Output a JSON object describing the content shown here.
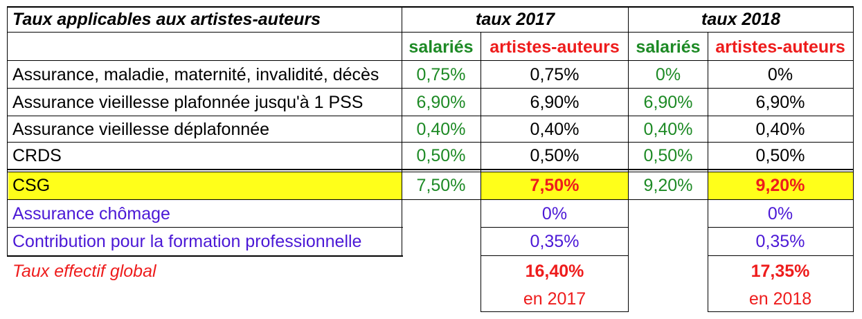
{
  "header": {
    "title": "Taux applicables aux artistes-auteurs",
    "year_2017": "taux  2017",
    "year_2018": "taux  2018"
  },
  "subheader": {
    "salaries_2017": "salariés",
    "artistes_2017": "artistes-auteurs",
    "salaries_2018": "salariés",
    "artistes_2018": "artistes-auteurs"
  },
  "rows": [
    {
      "label": "Assurance, maladie, maternité, invalidité, décès",
      "sal2017": "0,75%",
      "art2017": "0,75%",
      "sal2018": "0%",
      "art2018": "0%"
    },
    {
      "label": "Assurance vieillesse plafonnée jusqu'à 1 PSS",
      "sal2017": "6,90%",
      "art2017": "6,90%",
      "sal2018": "6,90%",
      "art2018": "6,90%"
    },
    {
      "label": "Assurance vieillesse déplafonnée",
      "sal2017": "0,40%",
      "art2017": "0,40%",
      "sal2018": "0,40%",
      "art2018": "0,40%"
    },
    {
      "label": "CRDS",
      "sal2017": "0,50%",
      "art2017": "0,50%",
      "sal2018": "0,50%",
      "art2018": "0,50%"
    },
    {
      "label": "CSG",
      "sal2017": "7,50%",
      "art2017": "7,50%",
      "sal2018": "9,20%",
      "art2018": "9,20%"
    }
  ],
  "artist_only_rows": [
    {
      "label": "Assurance chômage",
      "art2017": "0%",
      "art2018": "0%"
    },
    {
      "label": "Contribution pour la formation professionnelle",
      "art2017": "0,35%",
      "art2018": "0,35%"
    }
  ],
  "total": {
    "label": "Taux effectif global",
    "value_2017": "16,40%",
    "caption_2017": "en 2017",
    "value_2018": "17,35%",
    "caption_2018": "en 2018"
  },
  "colors": {
    "salaries_green": "#1d8a25",
    "artistes_red": "#ee1c1c",
    "extra_rows_blue": "#4b18d6",
    "csg_highlight_yellow": "#ffff1a"
  }
}
